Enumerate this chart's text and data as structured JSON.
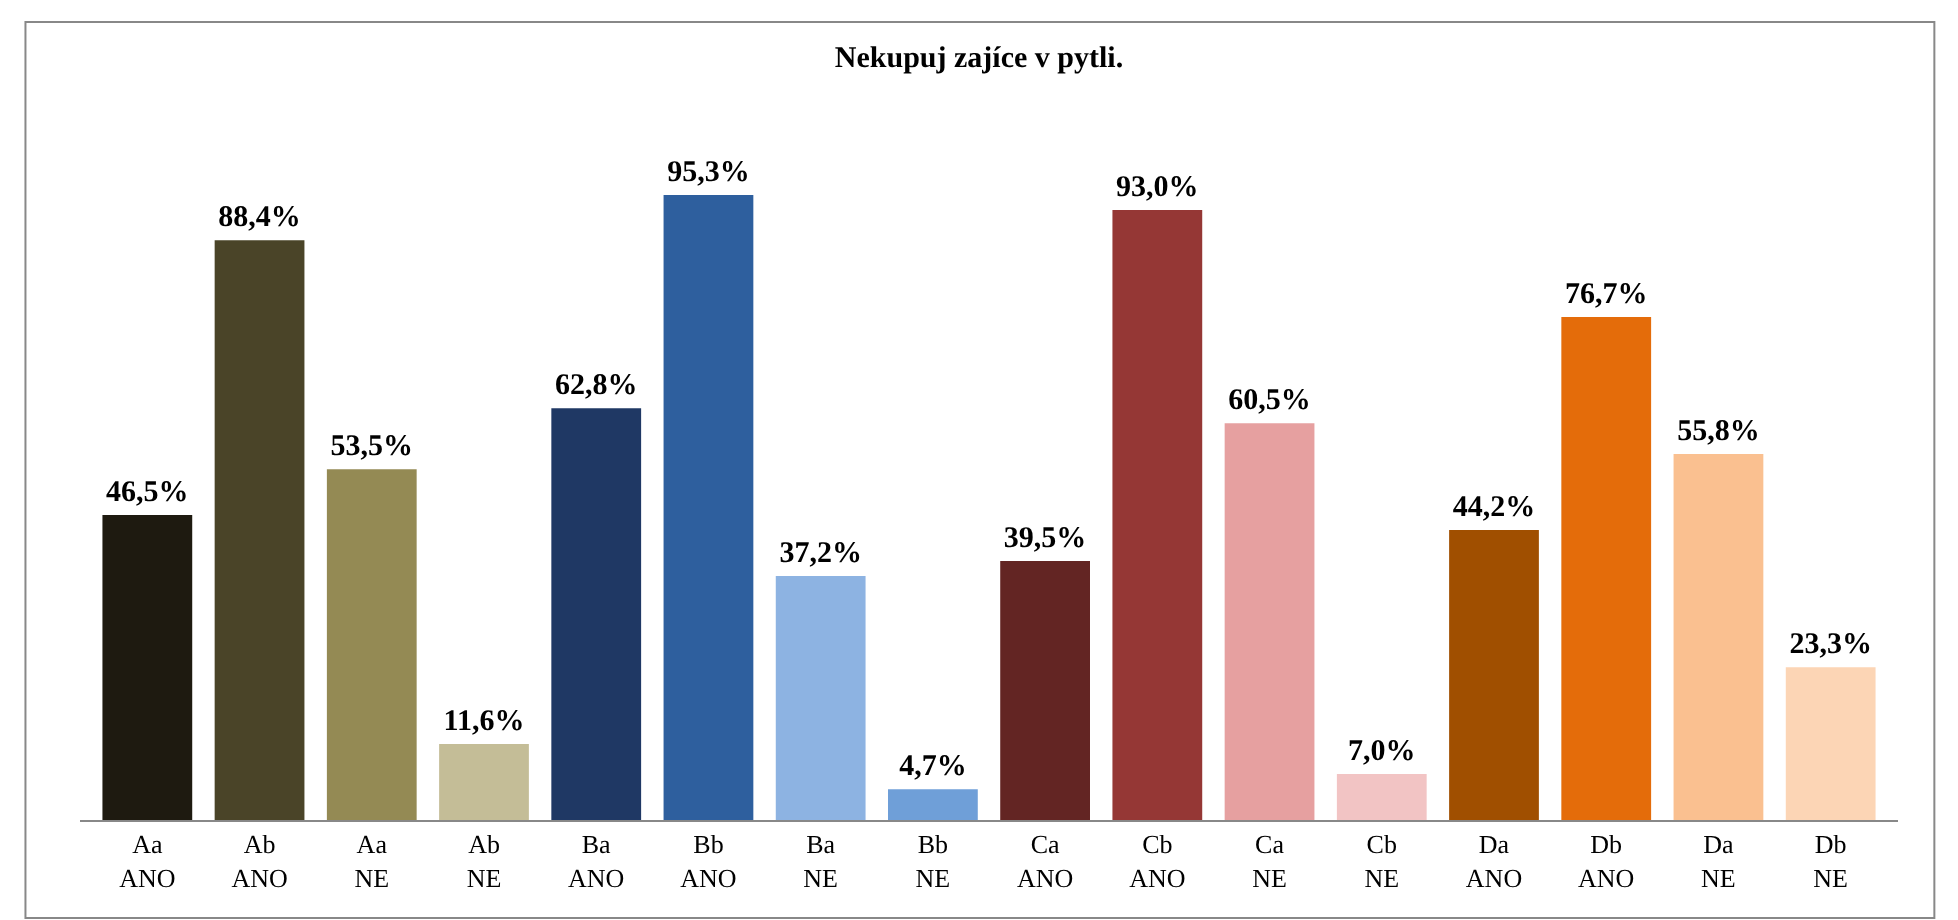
{
  "chart_data": {
    "type": "bar",
    "title": "Nekupuj zajíce v pytli.",
    "categories": [
      "Aa\nANO",
      "Ab\nANO",
      "Aa\nNE",
      "Ab\nNE",
      "Ba\nANO",
      "Bb\nANO",
      "Ba\nNE",
      "Bb\nNE",
      "Ca\nANO",
      "Cb\nANO",
      "Ca\nNE",
      "Cb\nNE",
      "Da\nANO",
      "Db\nANO",
      "Da\nNE",
      "Db\nNE"
    ],
    "values": [
      46.5,
      88.4,
      53.5,
      11.6,
      62.8,
      95.3,
      37.2,
      4.7,
      39.5,
      93.0,
      60.5,
      7.0,
      44.2,
      76.7,
      55.8,
      23.3
    ],
    "value_labels": [
      "46,5%",
      "88,4%",
      "53,5%",
      "11,6%",
      "62,8%",
      "95,3%",
      "37,2%",
      "4,7%",
      "39,5%",
      "93,0%",
      "60,5%",
      "7,0%",
      "44,2%",
      "76,7%",
      "55,8%",
      "23,3%"
    ],
    "colors": [
      "#1e1a10",
      "#4a4428",
      "#948a54",
      "#c4bd97",
      "#1f3864",
      "#2e5f9e",
      "#8db3e2",
      "#6f9fd8",
      "#632523",
      "#953735",
      "#e6a0a0",
      "#f2c4c4",
      "#a04f00",
      "#e46c0a",
      "#fac090",
      "#fcd5b5"
    ],
    "legend": false
  }
}
